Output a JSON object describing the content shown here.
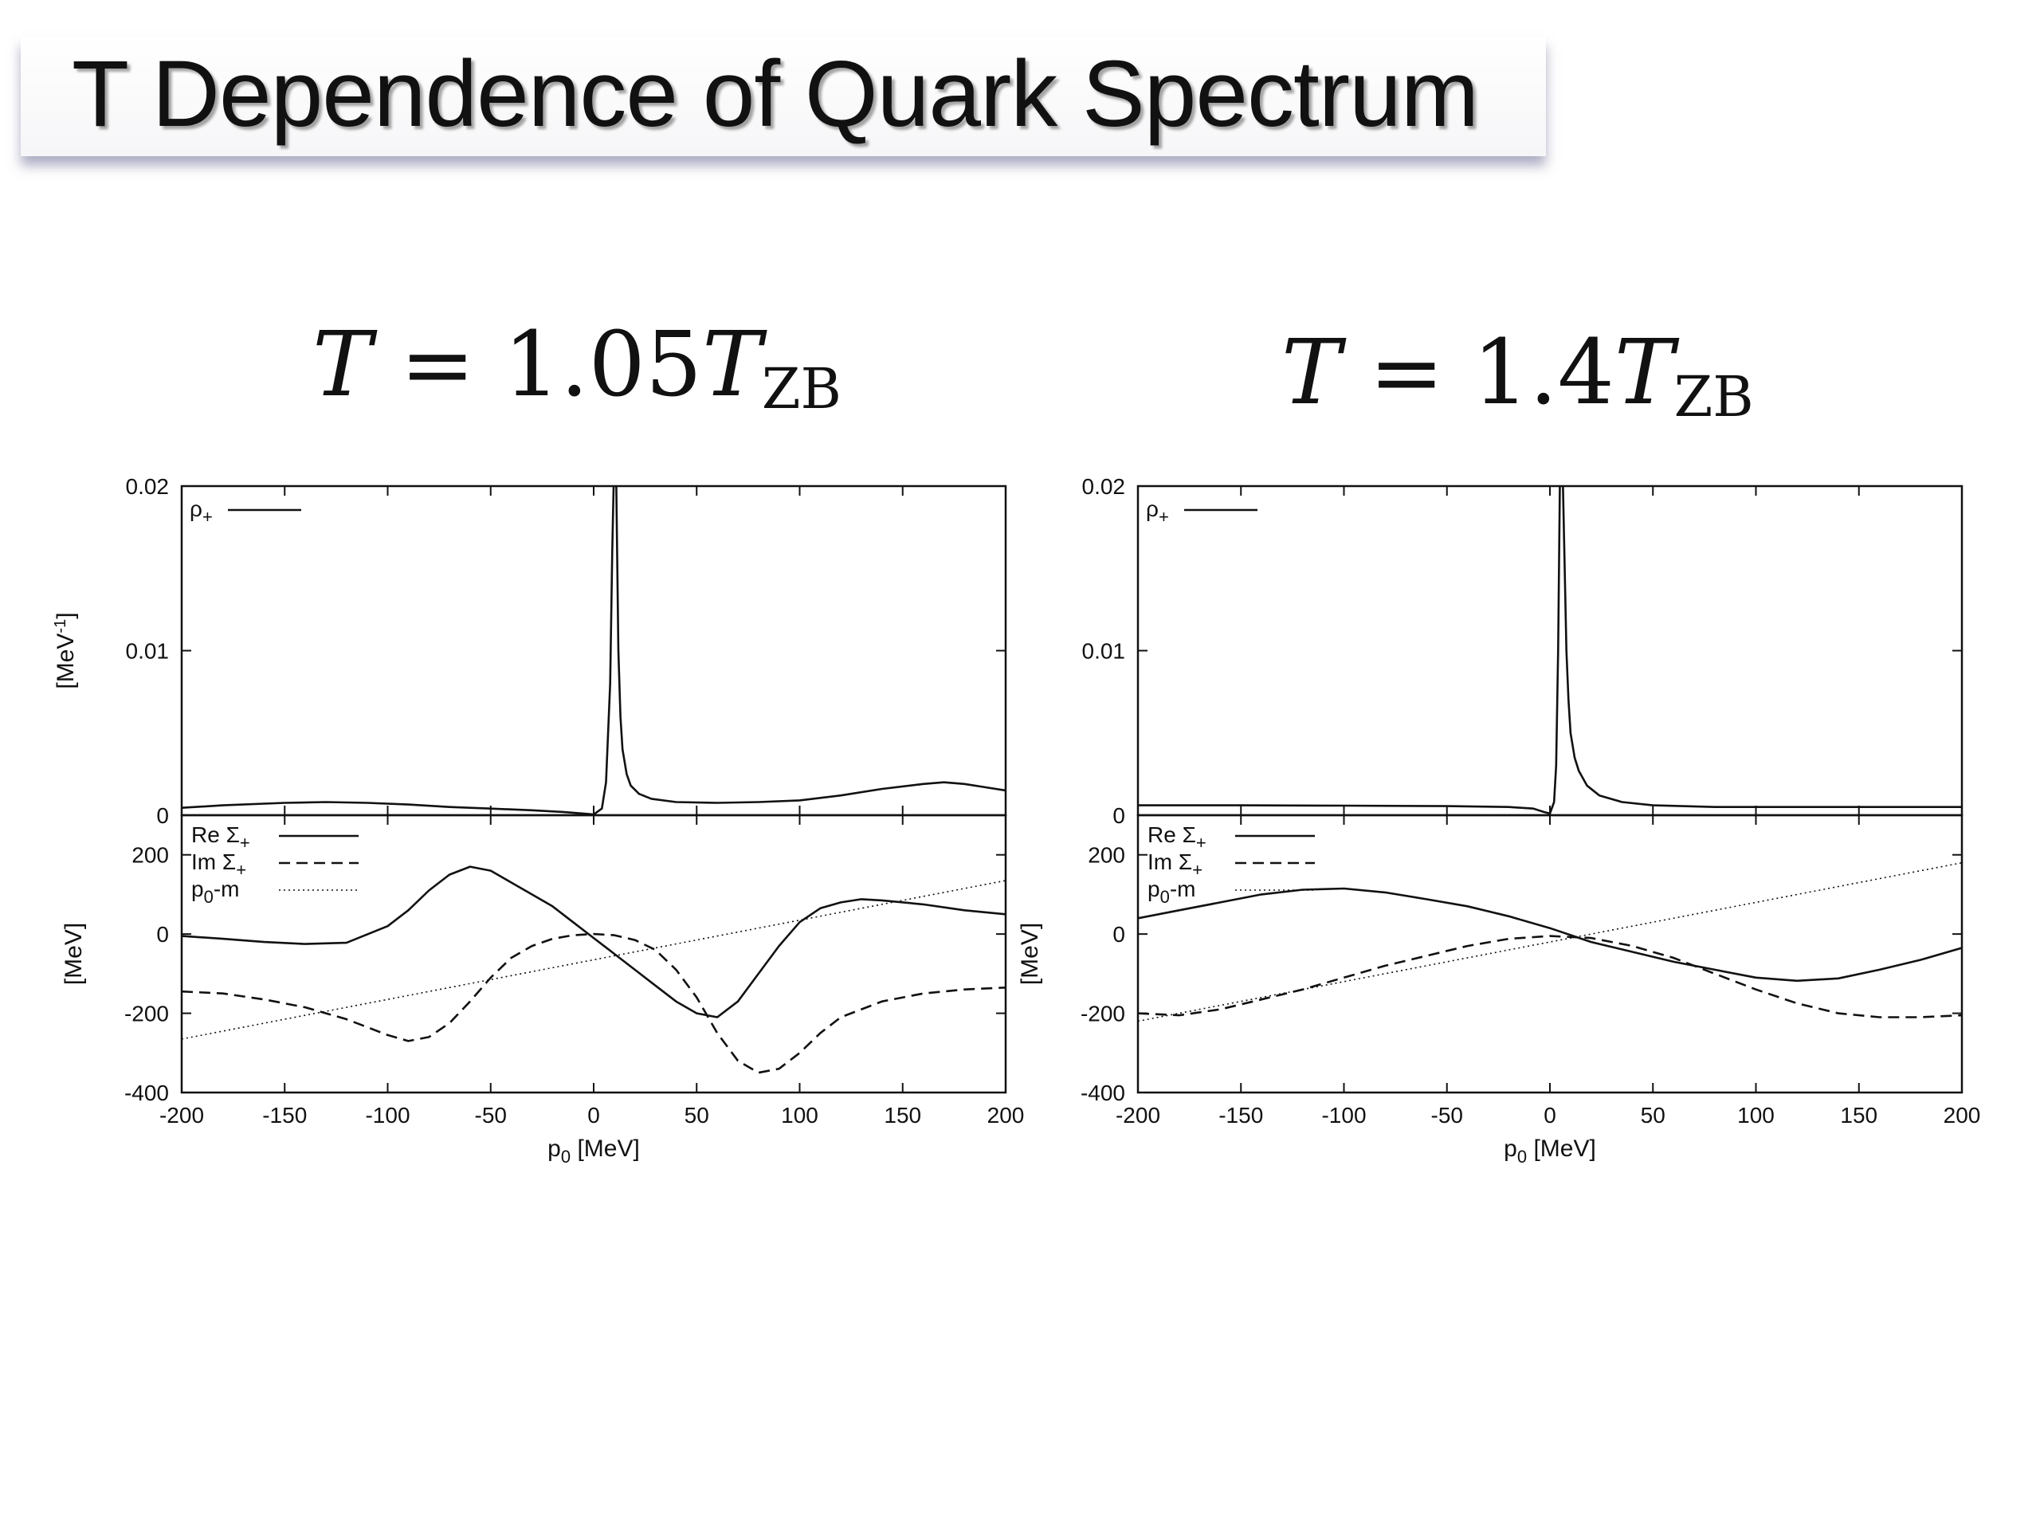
{
  "slide": {
    "title": "T Dependence of Quark Spectrum"
  },
  "panels": [
    {
      "temp_label": {
        "prefix": "T",
        "eq": " = 1.05",
        "var": "T",
        "sub": "ZB"
      },
      "top_ylabel": "[MeV",
      "top_ylabel_sup": "-1",
      "top_ylabel_close": "]",
      "bottom_ylabel": "[MeV]",
      "xlabel": "p",
      "xlabel_sub": "0",
      "xlabel_unit": " [MeV]",
      "legend_top": [
        {
          "name": "ρ",
          "sub": "+",
          "style": "solid"
        }
      ],
      "legend_bottom": [
        {
          "name": "Re Σ",
          "sub": "+",
          "style": "solid"
        },
        {
          "name": "Im Σ",
          "sub": "+",
          "style": "dashed"
        },
        {
          "name": "p",
          "sub": "0",
          "suffix": "-m",
          "style": "dotted"
        }
      ]
    },
    {
      "temp_label": {
        "prefix": "T",
        "eq": " = 1.4",
        "var": "T",
        "sub": "ZB"
      },
      "top_ylabel": "",
      "top_ylabel_sup": "",
      "top_ylabel_close": "",
      "bottom_ylabel": "[MeV]",
      "xlabel": "p",
      "xlabel_sub": "0",
      "xlabel_unit": " [MeV]",
      "legend_top": [
        {
          "name": "ρ",
          "sub": "+",
          "style": "solid"
        }
      ],
      "legend_bottom": [
        {
          "name": "Re Σ",
          "sub": "+",
          "style": "solid"
        },
        {
          "name": "Im Σ",
          "sub": "+",
          "style": "dashed"
        },
        {
          "name": "p",
          "sub": "0",
          "suffix": "-m",
          "style": "dotted"
        }
      ]
    }
  ],
  "chart_data": [
    {
      "type": "line",
      "panel": "T = 1.05 T_ZB, spectral function",
      "xlim": [
        -200,
        200
      ],
      "ylim": [
        0,
        0.02
      ],
      "x_ticks": [
        -200,
        -150,
        -100,
        -50,
        0,
        50,
        100,
        150,
        200
      ],
      "y_ticks": [
        "0",
        "0.01",
        "0.02"
      ],
      "y_tick_values": [
        0,
        0.01,
        0.02
      ],
      "ylabel": "[MeV-1]",
      "series": [
        {
          "name": "ρ+",
          "style": "solid",
          "x": [
            -200,
            -180,
            -150,
            -130,
            -110,
            -90,
            -70,
            -50,
            -30,
            -15,
            -5,
            0,
            4,
            6,
            8,
            9,
            10,
            11,
            12,
            13,
            14,
            16,
            18,
            22,
            28,
            40,
            60,
            80,
            100,
            120,
            140,
            160,
            170,
            180,
            190,
            200
          ],
          "y": [
            0.00045,
            0.0006,
            0.00075,
            0.0008,
            0.00075,
            0.00065,
            0.0005,
            0.0004,
            0.0003,
            0.0002,
            0.0001,
            5e-05,
            0.0004,
            0.002,
            0.008,
            0.016,
            0.022,
            0.02,
            0.01,
            0.006,
            0.004,
            0.0025,
            0.0018,
            0.0013,
            0.001,
            0.0008,
            0.00075,
            0.0008,
            0.0009,
            0.0012,
            0.0016,
            0.0019,
            0.002,
            0.0019,
            0.0017,
            0.0015
          ]
        }
      ]
    },
    {
      "type": "line",
      "panel": "T = 1.05 T_ZB, self-energy",
      "xlim": [
        -200,
        200
      ],
      "ylim": [
        -400,
        300
      ],
      "x_ticks": [
        -200,
        -150,
        -100,
        -50,
        0,
        50,
        100,
        150,
        200
      ],
      "y_ticks": [
        "-400",
        "-200",
        "0",
        "200"
      ],
      "y_tick_values": [
        -400,
        -200,
        0,
        200
      ],
      "xlabel": "p0 [MeV]",
      "ylabel": "[MeV]",
      "series": [
        {
          "name": "Re Σ+",
          "style": "solid",
          "x": [
            -200,
            -180,
            -160,
            -140,
            -120,
            -100,
            -90,
            -80,
            -70,
            -60,
            -50,
            -40,
            -30,
            -20,
            -10,
            0,
            10,
            20,
            30,
            40,
            50,
            60,
            70,
            80,
            90,
            100,
            110,
            120,
            130,
            140,
            160,
            180,
            200
          ],
          "y": [
            -5,
            -12,
            -20,
            -25,
            -22,
            20,
            60,
            110,
            150,
            170,
            160,
            130,
            100,
            70,
            30,
            -10,
            -50,
            -90,
            -130,
            -170,
            -200,
            -210,
            -170,
            -100,
            -30,
            30,
            65,
            80,
            88,
            85,
            75,
            60,
            50
          ]
        },
        {
          "name": "Im Σ+",
          "style": "dashed",
          "x": [
            -200,
            -180,
            -160,
            -140,
            -120,
            -100,
            -90,
            -80,
            -70,
            -60,
            -50,
            -40,
            -30,
            -20,
            -10,
            0,
            10,
            20,
            30,
            40,
            50,
            60,
            70,
            80,
            90,
            100,
            110,
            120,
            140,
            160,
            180,
            200
          ],
          "y": [
            -145,
            -150,
            -165,
            -185,
            -215,
            -255,
            -270,
            -260,
            -225,
            -170,
            -110,
            -60,
            -30,
            -12,
            -3,
            0,
            -3,
            -15,
            -40,
            -90,
            -160,
            -250,
            -320,
            -350,
            -340,
            -300,
            -250,
            -210,
            -170,
            -150,
            -140,
            -135
          ]
        },
        {
          "name": "p0-m",
          "style": "dotted",
          "x": [
            -200,
            200
          ],
          "y": [
            -265,
            135
          ]
        }
      ]
    },
    {
      "type": "line",
      "panel": "T = 1.4 T_ZB, spectral function",
      "xlim": [
        -200,
        200
      ],
      "ylim": [
        0,
        0.02
      ],
      "x_ticks": [
        -200,
        -150,
        -100,
        -50,
        0,
        50,
        100,
        150,
        200
      ],
      "y_ticks": [
        "0",
        "0.01",
        "0.02"
      ],
      "y_tick_values": [
        0,
        0.01,
        0.02
      ],
      "series": [
        {
          "name": "ρ+",
          "style": "solid",
          "x": [
            -200,
            -150,
            -100,
            -50,
            -20,
            -8,
            -3,
            0,
            2,
            3,
            4,
            5,
            6,
            7,
            8,
            9,
            10,
            12,
            14,
            18,
            24,
            35,
            50,
            80,
            120,
            160,
            200
          ],
          "y": [
            0.0006,
            0.0006,
            0.00058,
            0.00055,
            0.0005,
            0.0004,
            0.0002,
            0.0001,
            0.0008,
            0.003,
            0.01,
            0.022,
            0.022,
            0.016,
            0.01,
            0.007,
            0.005,
            0.0035,
            0.0027,
            0.0018,
            0.0012,
            0.0008,
            0.0006,
            0.0005,
            0.0005,
            0.0005,
            0.0005
          ]
        }
      ]
    },
    {
      "type": "line",
      "panel": "T = 1.4 T_ZB, self-energy",
      "xlim": [
        -200,
        200
      ],
      "ylim": [
        -400,
        300
      ],
      "x_ticks": [
        -200,
        -150,
        -100,
        -50,
        0,
        50,
        100,
        150,
        200
      ],
      "y_ticks": [
        "-400",
        "-200",
        "0",
        "200"
      ],
      "y_tick_values": [
        -400,
        -200,
        0,
        200
      ],
      "xlabel": "p0 [MeV]",
      "series": [
        {
          "name": "Re Σ+",
          "style": "solid",
          "x": [
            -200,
            -180,
            -160,
            -140,
            -120,
            -100,
            -80,
            -60,
            -40,
            -20,
            0,
            20,
            40,
            60,
            80,
            100,
            120,
            140,
            160,
            180,
            200
          ],
          "y": [
            40,
            60,
            80,
            100,
            112,
            115,
            105,
            88,
            70,
            45,
            15,
            -20,
            -45,
            -70,
            -90,
            -110,
            -118,
            -112,
            -90,
            -65,
            -35
          ]
        },
        {
          "name": "Im Σ+",
          "style": "dashed",
          "x": [
            -200,
            -180,
            -160,
            -140,
            -120,
            -100,
            -80,
            -60,
            -40,
            -20,
            0,
            20,
            40,
            60,
            80,
            100,
            120,
            140,
            160,
            180,
            200
          ],
          "y": [
            -200,
            -205,
            -190,
            -165,
            -140,
            -110,
            -80,
            -55,
            -30,
            -12,
            -5,
            -10,
            -30,
            -60,
            -100,
            -140,
            -175,
            -200,
            -210,
            -210,
            -205
          ]
        },
        {
          "name": "p0-m",
          "style": "dotted",
          "x": [
            -200,
            200
          ],
          "y": [
            -220,
            180
          ]
        }
      ]
    }
  ]
}
